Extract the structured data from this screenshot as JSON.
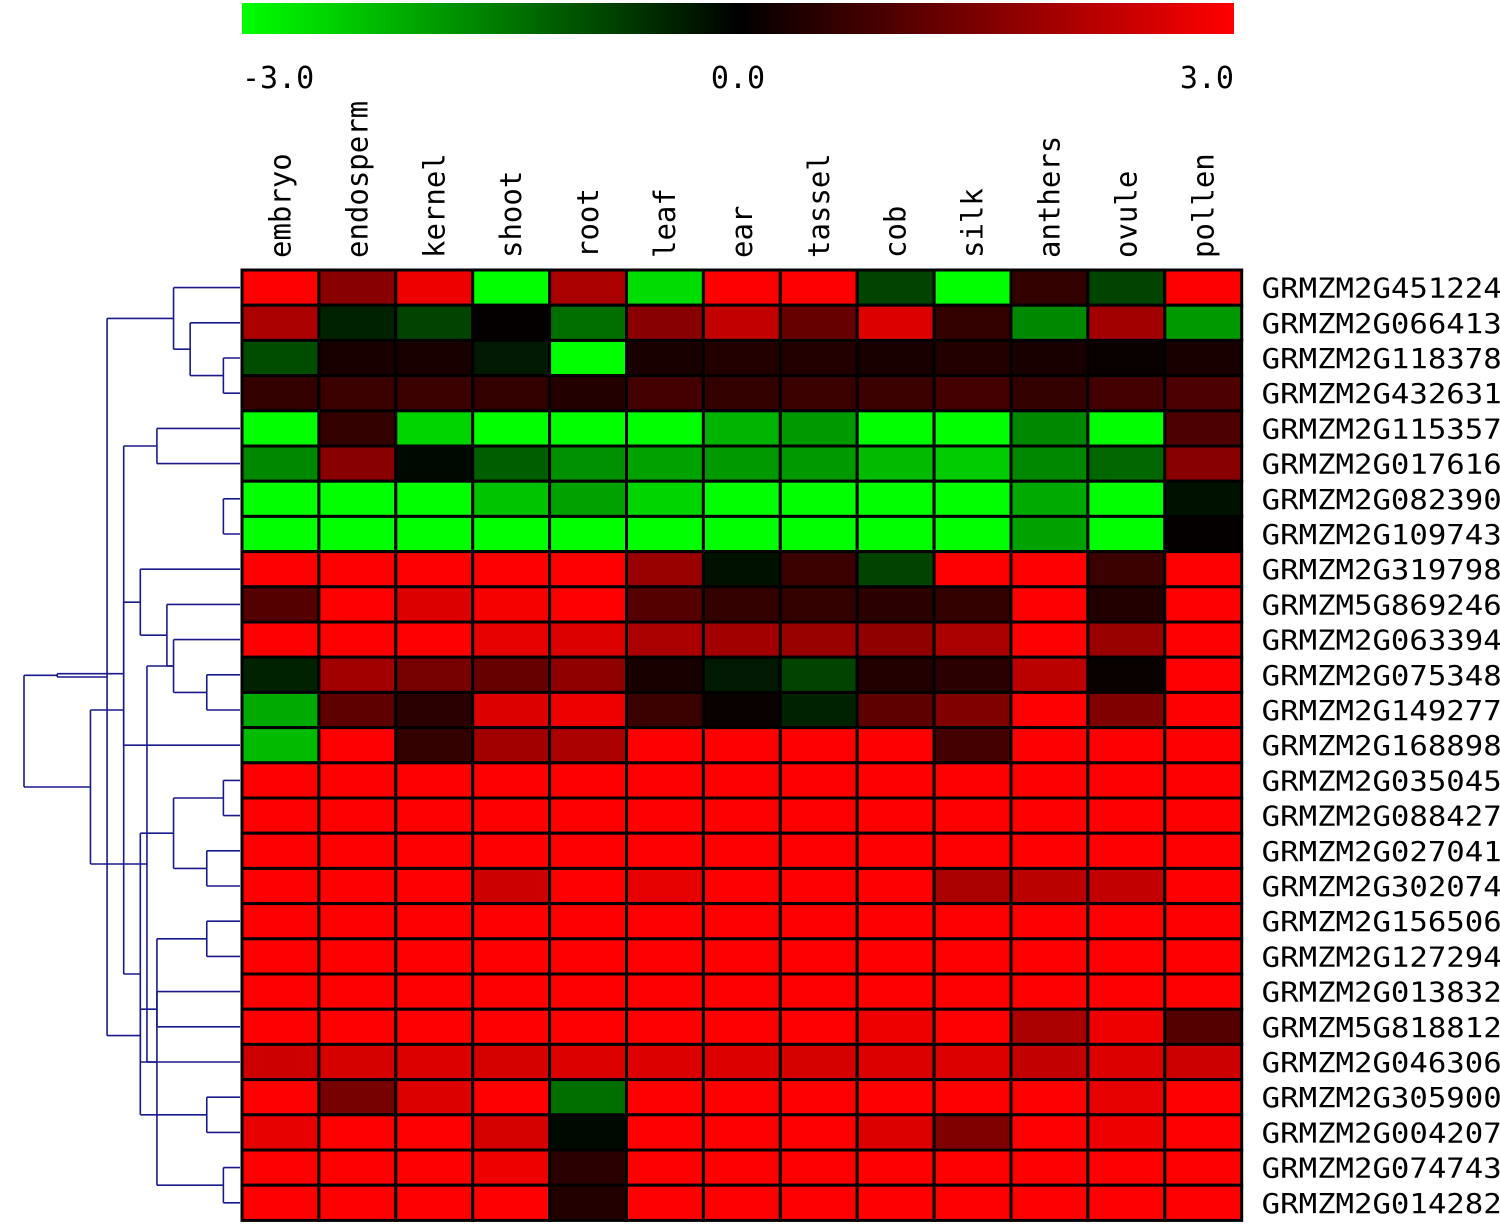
{
  "chart_data": {
    "type": "heatmap",
    "title": "",
    "xlabel": "",
    "ylabel": "",
    "colorscale": {
      "min": -3.0,
      "mid": 0.0,
      "max": 3.0,
      "min_label": "-3.0",
      "mid_label": "0.0",
      "max_label": "3.0",
      "low_color": "#00ff00",
      "mid_color": "#000000",
      "high_color": "#ff0000"
    },
    "dendrogram_color": "#1a1a8c",
    "columns": [
      "embryo",
      "endosperm",
      "kernel",
      "shoot",
      "root",
      "leaf",
      "ear",
      "tassel",
      "cob",
      "silk",
      "anthers",
      "ovule",
      "pollen"
    ],
    "rows": [
      "GRMZM2G451224",
      "GRMZM2G066413",
      "GRMZM2G118378",
      "GRMZM2G432631",
      "GRMZM2G115357",
      "GRMZM2G017616",
      "GRMZM2G082390",
      "GRMZM2G109743",
      "GRMZM2G319798",
      "GRMZM5G869246",
      "GRMZM2G063394",
      "GRMZM2G075348",
      "GRMZM2G149277",
      "GRMZM2G168898",
      "GRMZM2G035045",
      "GRMZM2G088427",
      "GRMZM2G027041",
      "GRMZM2G302074",
      "GRMZM2G156506",
      "GRMZM2G127294",
      "GRMZM2G013832",
      "GRMZM5G818812",
      "GRMZM2G046306",
      "GRMZM2G305900",
      "GRMZM2G004207",
      "GRMZM2G074743",
      "GRMZM2G014282"
    ],
    "values": [
      [
        3.0,
        1.6,
        2.8,
        -3.0,
        2.0,
        -2.6,
        3.0,
        3.0,
        -0.8,
        -3.0,
        0.6,
        -0.8,
        3.0
      ],
      [
        2.0,
        -0.4,
        -0.8,
        0.05,
        -1.3,
        1.6,
        2.3,
        1.2,
        2.6,
        0.6,
        -1.6,
        1.9,
        -1.8
      ],
      [
        -0.9,
        0.3,
        0.3,
        -0.3,
        -3.0,
        0.3,
        0.4,
        0.4,
        0.3,
        0.4,
        0.3,
        0.1,
        0.3
      ],
      [
        0.6,
        0.7,
        0.7,
        0.6,
        0.4,
        0.8,
        0.6,
        0.7,
        0.7,
        0.8,
        0.6,
        0.8,
        0.9
      ],
      [
        -3.0,
        0.6,
        -2.5,
        -3.0,
        -3.0,
        -3.0,
        -2.1,
        -1.8,
        -3.0,
        -3.0,
        -1.6,
        -3.0,
        0.9
      ],
      [
        -1.6,
        1.6,
        -0.1,
        -1.1,
        -1.7,
        -1.9,
        -1.8,
        -1.8,
        -2.2,
        -2.4,
        -1.6,
        -1.2,
        1.6
      ],
      [
        -3.0,
        -3.0,
        -3.0,
        -2.3,
        -1.9,
        -2.5,
        -3.0,
        -3.0,
        -3.0,
        -3.0,
        -2.0,
        -3.0,
        -0.2
      ],
      [
        -3.0,
        -3.0,
        -3.0,
        -3.0,
        -3.0,
        -3.0,
        -3.0,
        -3.0,
        -3.0,
        -3.0,
        -1.9,
        -3.0,
        0.05
      ],
      [
        3.0,
        3.0,
        3.0,
        3.0,
        3.0,
        1.8,
        -0.2,
        0.7,
        -0.8,
        3.0,
        3.0,
        0.7,
        3.0
      ],
      [
        1.0,
        3.0,
        2.6,
        2.9,
        3.0,
        1.0,
        0.6,
        0.6,
        0.5,
        0.6,
        3.0,
        0.4,
        3.0
      ],
      [
        3.0,
        3.0,
        3.0,
        2.7,
        2.6,
        2.0,
        1.9,
        1.8,
        1.7,
        2.0,
        3.0,
        1.8,
        3.0
      ],
      [
        -0.4,
        1.9,
        1.4,
        1.2,
        1.7,
        0.3,
        -0.3,
        -0.8,
        0.4,
        0.5,
        2.2,
        0.1,
        3.0
      ],
      [
        -2.0,
        1.1,
        0.5,
        2.6,
        2.8,
        0.7,
        0.1,
        -0.4,
        1.1,
        1.5,
        3.0,
        1.5,
        3.0
      ],
      [
        -2.2,
        3.0,
        0.6,
        1.9,
        2.0,
        3.0,
        3.0,
        3.0,
        3.0,
        0.8,
        3.0,
        3.0,
        3.0
      ],
      [
        3.0,
        3.0,
        3.0,
        3.0,
        3.0,
        3.0,
        3.0,
        3.0,
        3.0,
        3.0,
        3.0,
        3.0,
        3.0
      ],
      [
        3.0,
        3.0,
        3.0,
        3.0,
        3.0,
        3.0,
        3.0,
        3.0,
        3.0,
        3.0,
        3.0,
        3.0,
        3.0
      ],
      [
        3.0,
        3.0,
        3.0,
        3.0,
        3.0,
        3.0,
        3.0,
        3.0,
        3.0,
        3.0,
        3.0,
        3.0,
        3.0
      ],
      [
        3.0,
        3.0,
        3.0,
        2.4,
        3.0,
        2.7,
        3.0,
        3.0,
        3.0,
        2.0,
        2.2,
        2.3,
        3.0
      ],
      [
        3.0,
        3.0,
        3.0,
        3.0,
        3.0,
        3.0,
        3.0,
        3.0,
        3.0,
        3.0,
        3.0,
        3.0,
        3.0
      ],
      [
        3.0,
        3.0,
        3.0,
        3.0,
        3.0,
        3.0,
        3.0,
        3.0,
        3.0,
        3.0,
        3.0,
        3.0,
        3.0
      ],
      [
        3.0,
        3.0,
        3.0,
        3.0,
        3.0,
        3.0,
        3.0,
        3.0,
        3.0,
        3.0,
        3.0,
        3.0,
        3.0
      ],
      [
        3.0,
        3.0,
        3.0,
        3.0,
        3.0,
        3.0,
        3.0,
        3.0,
        2.8,
        3.0,
        2.0,
        2.8,
        1.0
      ],
      [
        2.4,
        2.5,
        2.6,
        2.5,
        2.6,
        2.6,
        2.6,
        2.5,
        2.6,
        2.6,
        2.3,
        2.6,
        2.4
      ],
      [
        3.0,
        1.4,
        2.6,
        3.0,
        -1.3,
        3.0,
        3.0,
        3.0,
        3.0,
        3.0,
        3.0,
        2.7,
        3.0
      ],
      [
        2.7,
        3.0,
        3.0,
        2.5,
        -0.1,
        3.0,
        3.0,
        3.0,
        2.6,
        1.5,
        3.0,
        2.8,
        3.0
      ],
      [
        3.0,
        3.0,
        3.0,
        2.8,
        0.5,
        3.0,
        3.0,
        3.0,
        3.0,
        3.0,
        3.0,
        3.0,
        3.0
      ],
      [
        3.0,
        3.0,
        3.0,
        3.0,
        0.4,
        3.0,
        3.0,
        3.0,
        3.0,
        3.0,
        3.0,
        3.0,
        3.0
      ]
    ],
    "dendrogram": {
      "order": [
        0,
        1,
        2,
        3,
        4,
        5,
        6,
        7,
        8,
        9,
        10,
        11,
        12,
        13,
        14,
        15,
        16,
        17,
        18,
        19,
        20,
        21,
        22,
        23,
        24,
        25,
        26
      ],
      "merges": [
        [
          2,
          3,
          0.05
        ],
        [
          6,
          7,
          0.05
        ],
        [
          14,
          15,
          0.05
        ],
        [
          25,
          26,
          0.05
        ],
        [
          16,
          17,
          0.1
        ],
        [
          18,
          19,
          0.1
        ],
        [
          11,
          12,
          0.1
        ],
        [
          1,
          27,
          0.15
        ],
        [
          4,
          5,
          0.25
        ],
        [
          23,
          24,
          0.1
        ],
        [
          29,
          31,
          0.2
        ],
        [
          30,
          32,
          0.25
        ],
        [
          10,
          33,
          0.2
        ],
        [
          36,
          37,
          0.3
        ],
        [
          38,
          39,
          0.28
        ],
        [
          20,
          21,
          0.25
        ],
        [
          42,
          22,
          0.3
        ],
        [
          9,
          39,
          0.22
        ],
        [
          8,
          44,
          0.3
        ],
        [
          0,
          34,
          0.2
        ],
        [
          35,
          40,
          0.35
        ],
        [
          45,
          13,
          0.35
        ],
        [
          46,
          43,
          0.4
        ],
        [
          41,
          47,
          0.45
        ],
        [
          48,
          49,
          0.55
        ],
        [
          50,
          51,
          0.65
        ]
      ]
    }
  }
}
